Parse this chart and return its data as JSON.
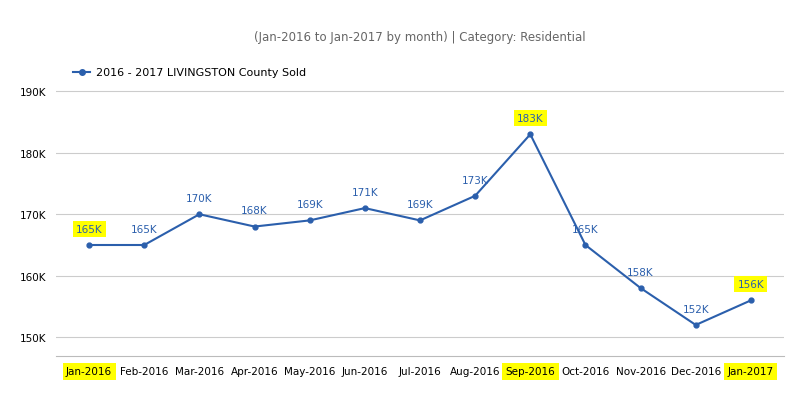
{
  "title": "(Jan-2016 to Jan-2017 by month) | Category: Residential",
  "legend_label": "2016 - 2017 LIVINGSTON County Sold",
  "months": [
    "Jan-2016",
    "Feb-2016",
    "Mar-2016",
    "Apr-2016",
    "May-2016",
    "Jun-2016",
    "Jul-2016",
    "Aug-2016",
    "Sep-2016",
    "Oct-2016",
    "Nov-2016",
    "Dec-2016",
    "Jan-2017"
  ],
  "values": [
    165000,
    165000,
    170000,
    168000,
    169000,
    171000,
    169000,
    173000,
    183000,
    165000,
    158000,
    152000,
    156000
  ],
  "labels": [
    "165K",
    "165K",
    "170K",
    "168K",
    "169K",
    "171K",
    "169K",
    "173K",
    "183K",
    "165K",
    "158K",
    "152K",
    "156K"
  ],
  "label_offsets": [
    1800,
    1800,
    1800,
    1800,
    1800,
    1800,
    1800,
    1800,
    1800,
    1800,
    1800,
    1800,
    1800
  ],
  "highlighted_points": [
    0,
    8,
    12
  ],
  "highlighted_xticks": [
    0,
    8,
    12
  ],
  "highlight_color": "#ffff00",
  "line_color": "#2b5fac",
  "marker_color": "#2b5fac",
  "yticks": [
    150000,
    160000,
    170000,
    180000,
    190000
  ],
  "ytick_labels": [
    "150K",
    "160K",
    "170K",
    "180K",
    "190K"
  ],
  "ylim": [
    147000,
    197000
  ],
  "xlim": [
    -0.6,
    12.6
  ],
  "background_color": "#ffffff",
  "grid_color": "#cccccc",
  "title_fontsize": 8.5,
  "label_fontsize": 7.5,
  "axis_tick_fontsize": 7.5,
  "legend_fontsize": 8
}
